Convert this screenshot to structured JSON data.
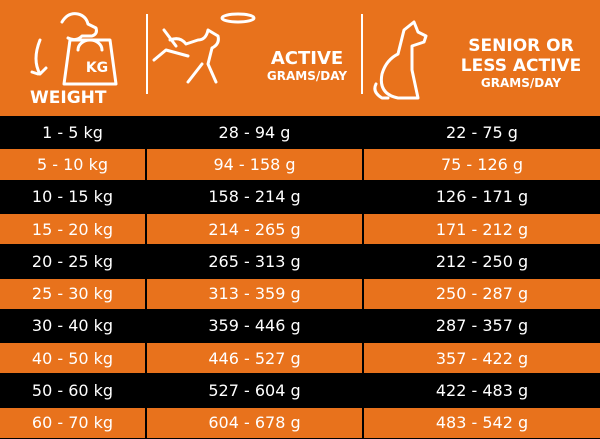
{
  "header": {
    "weight_icon": "KG",
    "weight": "WEIGHT",
    "active": "ACTIVE",
    "active_sub": "GRAMS/DAY",
    "senior_line1": "SENIOR OR",
    "senior_line2": "LESS ACTIVE",
    "senior_sub": "GRAMS/DAY"
  },
  "table": {
    "rows": [
      [
        "1 - 5 kg",
        "28 - 94 g",
        "22 - 75 g"
      ],
      [
        "5 - 10 kg",
        "94 - 158 g",
        "75 - 126 g"
      ],
      [
        "10 - 15 kg",
        "158 - 214 g",
        "126 - 171 g"
      ],
      [
        "15 - 20 kg",
        "214 - 265 g",
        "171 - 212 g"
      ],
      [
        "20 - 25 kg",
        "265 - 313 g",
        "212 - 250 g"
      ],
      [
        "25 - 30 kg",
        "313 - 359 g",
        "250 - 287 g"
      ],
      [
        "30 - 40 kg",
        "359 - 446 g",
        "287 - 357 g"
      ],
      [
        "40 - 50 kg",
        "446 - 527 g",
        "357 - 422 g"
      ],
      [
        "50 - 60 kg",
        "527 - 604 g",
        "422 - 483 g"
      ],
      [
        "60 - 70 kg",
        "604 - 678 g",
        "483 - 542 g"
      ]
    ]
  }
}
